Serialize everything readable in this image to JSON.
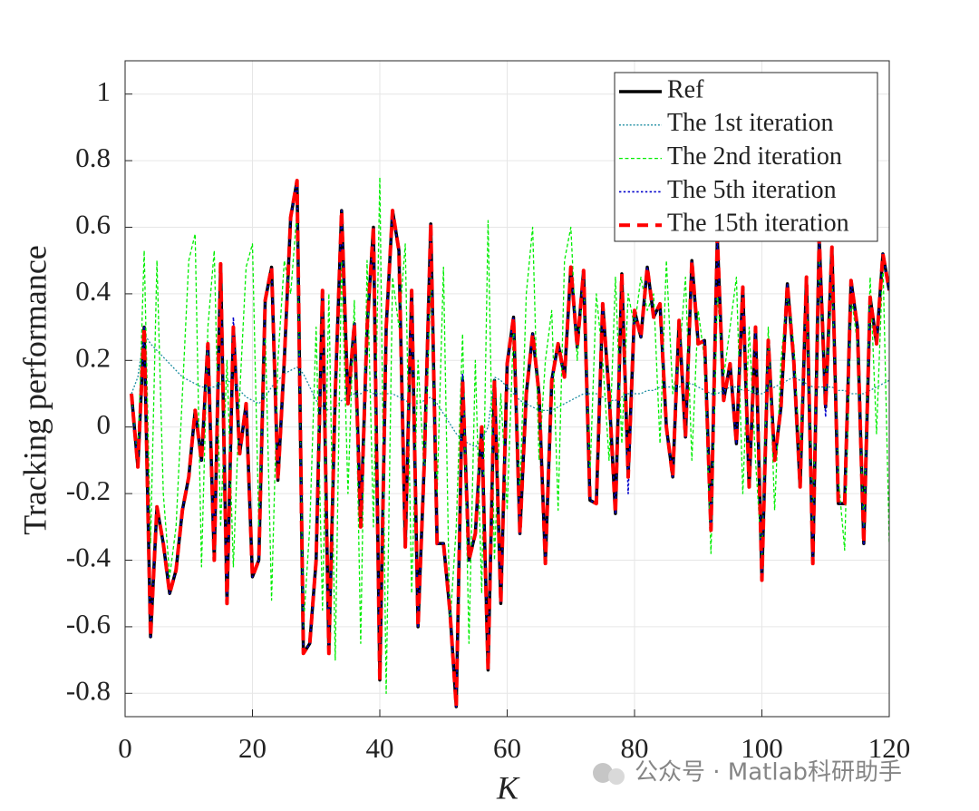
{
  "chart_data": {
    "type": "line",
    "xlabel": "K",
    "ylabel": "Tracking performance",
    "watermark": "公众号 · Matlab科研助手",
    "x": [
      1,
      2,
      3,
      4,
      5,
      6,
      7,
      8,
      9,
      10,
      11,
      12,
      13,
      14,
      15,
      16,
      17,
      18,
      19,
      20,
      21,
      22,
      23,
      24,
      25,
      26,
      27,
      28,
      29,
      30,
      31,
      32,
      33,
      34,
      35,
      36,
      37,
      38,
      39,
      40,
      41,
      42,
      43,
      44,
      45,
      46,
      47,
      48,
      49,
      50,
      51,
      52,
      53,
      54,
      55,
      56,
      57,
      58,
      59,
      60,
      61,
      62,
      63,
      64,
      65,
      66,
      67,
      68,
      69,
      70,
      71,
      72,
      73,
      74,
      75,
      76,
      77,
      78,
      79,
      80,
      81,
      82,
      83,
      84,
      85,
      86,
      87,
      88,
      89,
      90,
      91,
      92,
      93,
      94,
      95,
      96,
      97,
      98,
      99,
      100,
      101,
      102,
      103,
      104,
      105,
      106,
      107,
      108,
      109,
      110,
      111,
      112,
      113,
      114,
      115,
      116,
      117,
      118,
      119,
      120
    ],
    "xlim": [
      0,
      120
    ],
    "xticks": [
      0,
      20,
      40,
      60,
      80,
      100,
      120
    ],
    "ylim": [
      -0.87,
      1.1
    ],
    "yticks": [
      -0.8,
      -0.6,
      -0.4,
      -0.2,
      0,
      0.2,
      0.4,
      0.6,
      0.8,
      1
    ],
    "grid": true,
    "legend": "upper right",
    "series": [
      {
        "name": "Ref",
        "color": "#000000",
        "linestyle": "-",
        "linewidth": 3.5,
        "values": [
          0.1,
          -0.12,
          0.3,
          -0.63,
          -0.24,
          -0.35,
          -0.5,
          -0.43,
          -0.25,
          -0.15,
          0.05,
          -0.1,
          0.25,
          -0.4,
          0.49,
          -0.53,
          0.3,
          -0.08,
          0.07,
          -0.45,
          -0.4,
          0.38,
          0.48,
          -0.16,
          0.2,
          0.63,
          0.74,
          -0.68,
          -0.65,
          -0.4,
          0.41,
          -0.68,
          0.1,
          0.65,
          0.07,
          0.31,
          -0.3,
          0.3,
          0.6,
          -0.76,
          0.3,
          0.65,
          0.53,
          -0.36,
          0.41,
          -0.6,
          -0.1,
          0.61,
          -0.35,
          -0.35,
          -0.55,
          -0.84,
          0.14,
          -0.4,
          -0.32,
          0.0,
          -0.73,
          0.14,
          -0.53,
          0.19,
          0.33,
          -0.32,
          0.1,
          0.28,
          0.1,
          -0.41,
          0.14,
          0.25,
          0.15,
          0.48,
          0.24,
          0.47,
          -0.22,
          -0.23,
          0.37,
          0.1,
          -0.26,
          0.46,
          -0.15,
          0.35,
          0.27,
          0.48,
          0.33,
          0.37,
          0.0,
          -0.15,
          0.32,
          -0.03,
          0.5,
          0.25,
          0.26,
          -0.31,
          0.57,
          0.08,
          0.19,
          -0.05,
          0.42,
          -0.18,
          0.3,
          -0.46,
          0.26,
          -0.1,
          0.06,
          0.43,
          0.2,
          -0.18,
          0.45,
          -0.41,
          0.57,
          0.06,
          0.54,
          -0.23,
          -0.23,
          0.44,
          0.3,
          -0.35,
          0.39,
          0.25,
          0.52,
          0.41
        ]
      },
      {
        "name": "The 1st iteration",
        "color": "#1a8ca0",
        "linestyle": ":",
        "linewidth": 1.3,
        "values": [
          0.1,
          0.15,
          0.28,
          0.25,
          0.23,
          0.21,
          0.19,
          0.17,
          0.15,
          0.14,
          0.13,
          0.12,
          0.12,
          0.12,
          0.13,
          0.14,
          0.13,
          0.11,
          0.09,
          0.08,
          0.07,
          0.09,
          0.12,
          0.14,
          0.16,
          0.17,
          0.18,
          0.16,
          0.12,
          0.08,
          0.06,
          0.05,
          0.06,
          0.08,
          0.09,
          0.1,
          0.1,
          0.11,
          0.1,
          0.1,
          0.1,
          0.1,
          0.09,
          0.08,
          0.07,
          0.07,
          0.08,
          0.09,
          0.07,
          0.04,
          0.01,
          -0.02,
          -0.04,
          -0.05,
          -0.06,
          -0.04,
          0.0,
          0.15,
          0.14,
          0.12,
          0.1,
          0.08,
          0.07,
          0.06,
          0.05,
          0.05,
          0.05,
          0.06,
          0.07,
          0.08,
          0.09,
          0.1,
          0.1,
          0.1,
          0.09,
          0.08,
          0.08,
          0.09,
          0.1,
          0.1,
          0.1,
          0.11,
          0.11,
          0.12,
          0.12,
          0.12,
          0.12,
          0.13,
          0.13,
          0.12,
          0.11,
          0.1,
          0.1,
          0.11,
          0.12,
          0.12,
          0.11,
          0.11,
          0.1,
          0.1,
          0.11,
          0.12,
          0.13,
          0.14,
          0.15,
          0.14,
          0.13,
          0.12,
          0.12,
          0.12,
          0.12,
          0.11,
          0.11,
          0.1,
          0.1,
          0.1,
          0.11,
          0.12,
          0.13,
          0.14
        ]
      },
      {
        "name": "The 2nd iteration",
        "color": "#00ee00",
        "linestyle": "--",
        "linewidth": 1.3,
        "values": [
          0.1,
          -0.1,
          0.53,
          -0.35,
          0.5,
          -0.2,
          -0.45,
          -0.3,
          0.1,
          0.5,
          0.58,
          -0.42,
          0.3,
          0.53,
          -0.3,
          0.2,
          -0.42,
          0.1,
          0.48,
          0.55,
          -0.3,
          0.3,
          -0.52,
          0.2,
          0.5,
          0.4,
          0.65,
          -0.6,
          -0.3,
          0.3,
          -0.55,
          0.4,
          -0.7,
          0.5,
          -0.2,
          0.38,
          -0.65,
          0.5,
          -0.3,
          0.75,
          -0.8,
          0.45,
          0.3,
          0.55,
          -0.5,
          0.2,
          -0.15,
          0.45,
          -0.2,
          0.48,
          -0.6,
          -0.3,
          0.28,
          -0.65,
          0.2,
          -0.5,
          0.62,
          -0.4,
          0.1,
          -0.25,
          0.3,
          -0.2,
          0.4,
          0.6,
          -0.1,
          0.2,
          0.35,
          -0.25,
          0.5,
          0.6,
          0.2,
          0.45,
          -0.15,
          0.4,
          0.2,
          -0.1,
          0.45,
          -0.05,
          0.4,
          0.3,
          0.45,
          0.35,
          0.4,
          -0.05,
          0.5,
          0.1,
          0.2,
          0.45,
          -0.1,
          0.35,
          0.2,
          -0.38,
          0.4,
          0.15,
          0.3,
          0.45,
          -0.2,
          0.3,
          -0.1,
          -0.4,
          0.3,
          -0.25,
          0.2,
          0.4,
          0.25,
          -0.1,
          0.4,
          -0.3,
          0.5,
          0.1,
          0.45,
          -0.15,
          -0.37,
          0.4,
          0.25,
          -0.3,
          0.45,
          -0.02,
          0.5,
          -0.35
        ]
      },
      {
        "name": "The 5th iteration",
        "color": "#0000cc",
        "linestyle": ":",
        "linewidth": 1.6,
        "values": [
          0.1,
          -0.12,
          0.3,
          -0.63,
          -0.24,
          -0.35,
          -0.5,
          -0.43,
          -0.25,
          -0.15,
          0.05,
          -0.1,
          0.25,
          -0.4,
          0.49,
          -0.53,
          0.33,
          -0.08,
          0.07,
          -0.45,
          -0.4,
          0.38,
          0.48,
          -0.16,
          0.2,
          0.63,
          0.74,
          -0.68,
          -0.65,
          -0.4,
          0.41,
          -0.68,
          0.1,
          0.65,
          0.07,
          0.31,
          -0.3,
          0.3,
          0.6,
          -0.76,
          0.3,
          0.65,
          0.53,
          -0.36,
          0.41,
          -0.6,
          -0.1,
          0.61,
          -0.35,
          -0.35,
          -0.55,
          -0.84,
          0.16,
          -0.4,
          -0.32,
          0.0,
          -0.73,
          0.14,
          -0.53,
          0.19,
          0.33,
          -0.32,
          0.1,
          0.28,
          0.1,
          -0.41,
          0.14,
          0.25,
          0.15,
          0.48,
          0.24,
          0.47,
          -0.22,
          -0.23,
          0.37,
          0.1,
          -0.26,
          0.46,
          -0.2,
          0.35,
          0.27,
          0.48,
          0.33,
          0.37,
          0.0,
          -0.15,
          0.32,
          -0.03,
          0.5,
          0.25,
          0.26,
          -0.31,
          0.57,
          0.08,
          0.19,
          -0.05,
          0.42,
          -0.18,
          0.3,
          -0.46,
          0.26,
          -0.1,
          0.06,
          0.43,
          0.2,
          -0.18,
          0.45,
          -0.41,
          0.57,
          0.03,
          0.54,
          -0.23,
          -0.23,
          0.44,
          0.3,
          -0.35,
          0.39,
          0.25,
          0.52,
          0.41
        ]
      },
      {
        "name": "The 15th iteration",
        "color": "#ff0000",
        "linestyle": "--",
        "linewidth": 4,
        "values": [
          0.1,
          -0.12,
          0.3,
          -0.63,
          -0.24,
          -0.35,
          -0.5,
          -0.43,
          -0.25,
          -0.15,
          0.05,
          -0.1,
          0.25,
          -0.4,
          0.49,
          -0.53,
          0.3,
          -0.08,
          0.07,
          -0.45,
          -0.4,
          0.38,
          0.48,
          -0.16,
          0.2,
          0.63,
          0.74,
          -0.68,
          -0.65,
          -0.4,
          0.41,
          -0.68,
          0.1,
          0.65,
          0.07,
          0.31,
          -0.3,
          0.3,
          0.6,
          -0.76,
          0.3,
          0.65,
          0.53,
          -0.36,
          0.41,
          -0.6,
          -0.1,
          0.61,
          -0.35,
          -0.35,
          -0.55,
          -0.84,
          0.14,
          -0.4,
          -0.32,
          0.0,
          -0.73,
          0.14,
          -0.53,
          0.19,
          0.33,
          -0.32,
          0.1,
          0.28,
          0.1,
          -0.41,
          0.14,
          0.25,
          0.15,
          0.48,
          0.24,
          0.47,
          -0.22,
          -0.23,
          0.37,
          0.1,
          -0.26,
          0.46,
          -0.15,
          0.35,
          0.27,
          0.48,
          0.33,
          0.37,
          0.0,
          -0.15,
          0.32,
          -0.03,
          0.5,
          0.25,
          0.26,
          -0.31,
          0.57,
          0.08,
          0.19,
          -0.05,
          0.42,
          -0.18,
          0.3,
          -0.46,
          0.26,
          -0.1,
          0.06,
          0.43,
          0.2,
          -0.18,
          0.45,
          -0.41,
          0.57,
          0.06,
          0.54,
          -0.23,
          -0.23,
          0.44,
          0.3,
          -0.35,
          0.39,
          0.25,
          0.52,
          0.41
        ]
      }
    ]
  }
}
